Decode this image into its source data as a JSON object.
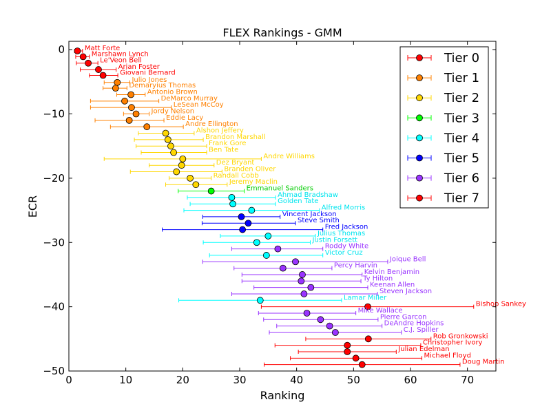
{
  "chart_data": {
    "type": "scatter",
    "title": "FLEX Rankings - GMM",
    "xlabel": "Ranking",
    "ylabel": "ECR",
    "xlim": [
      0,
      75
    ],
    "ylim": [
      -50,
      1.3
    ],
    "x_ticks": [
      0,
      10,
      20,
      30,
      40,
      50,
      60,
      70
    ],
    "y_ticks": [
      0,
      -10,
      -20,
      -30,
      -40,
      -50
    ],
    "x_tick_labels": [
      "0",
      "10",
      "20",
      "30",
      "40",
      "50",
      "60",
      "70"
    ],
    "y_tick_labels": [
      "0",
      "−10",
      "−20",
      "−30",
      "−40",
      "−50"
    ],
    "grid": false,
    "legend_position": "top-right",
    "legend": [
      {
        "label": "Tier 0",
        "color": "#ff0000"
      },
      {
        "label": "Tier 1",
        "color": "#ff8000"
      },
      {
        "label": "Tier 2",
        "color": "#ffd700"
      },
      {
        "label": "Tier 3",
        "color": "#00ff00"
      },
      {
        "label": "Tier 4",
        "color": "#00ffff"
      },
      {
        "label": "Tier 5",
        "color": "#0000ff"
      },
      {
        "label": "Tier 6",
        "color": "#9933ff"
      },
      {
        "label": "Tier 7",
        "color": "#ff0000"
      }
    ],
    "players": [
      {
        "name": "Matt Forte",
        "x": 1.5,
        "y": -0.2,
        "xmin": 1.0,
        "xmax": 2.4,
        "tier": 0
      },
      {
        "name": "Marshawn Lynch",
        "x": 2.5,
        "y": -1.1,
        "xmin": 1.2,
        "xmax": 3.6,
        "tier": 0
      },
      {
        "name": "Le'Veon Bell",
        "x": 3.4,
        "y": -2.1,
        "xmin": 1.3,
        "xmax": 5.1,
        "tier": 0
      },
      {
        "name": "Arian Foster",
        "x": 5.2,
        "y": -3.1,
        "xmin": 2.0,
        "xmax": 8.3,
        "tier": 0
      },
      {
        "name": "Giovani Bernard",
        "x": 6.0,
        "y": -4.0,
        "xmin": 3.6,
        "xmax": 8.6,
        "tier": 0
      },
      {
        "name": "Julio Jones",
        "x": 8.5,
        "y": -5.1,
        "xmin": 6.2,
        "xmax": 10.7,
        "tier": 1
      },
      {
        "name": "Demaryius Thomas",
        "x": 8.2,
        "y": -6.0,
        "xmin": 6.0,
        "xmax": 10.2,
        "tier": 1
      },
      {
        "name": "Antonio Brown",
        "x": 10.9,
        "y": -7.0,
        "xmin": 8.4,
        "xmax": 13.4,
        "tier": 1
      },
      {
        "name": "DeMarco Murray",
        "x": 9.8,
        "y": -8.0,
        "xmin": 3.8,
        "xmax": 15.8,
        "tier": 1
      },
      {
        "name": "LeSean McCoy",
        "x": 11.0,
        "y": -9.0,
        "xmin": 3.8,
        "xmax": 18.0,
        "tier": 1
      },
      {
        "name": "Jordy Nelson",
        "x": 11.8,
        "y": -10.0,
        "xmin": 9.6,
        "xmax": 14.1,
        "tier": 1
      },
      {
        "name": "Eddie Lacy",
        "x": 10.6,
        "y": -11.0,
        "xmin": 4.6,
        "xmax": 16.7,
        "tier": 1
      },
      {
        "name": "Andre Ellington",
        "x": 13.7,
        "y": -12.0,
        "xmin": 7.3,
        "xmax": 20.1,
        "tier": 1
      },
      {
        "name": "Alshon Jeffery",
        "x": 17.0,
        "y": -13.0,
        "xmin": 12.2,
        "xmax": 22.0,
        "tier": 2
      },
      {
        "name": "Brandon Marshall",
        "x": 17.4,
        "y": -14.0,
        "xmin": 11.5,
        "xmax": 23.6,
        "tier": 2
      },
      {
        "name": "Frank Gore",
        "x": 17.9,
        "y": -15.0,
        "xmin": 11.8,
        "xmax": 24.2,
        "tier": 2
      },
      {
        "name": "Ben Tate",
        "x": 18.4,
        "y": -16.0,
        "xmin": 12.7,
        "xmax": 24.2,
        "tier": 2
      },
      {
        "name": "Andre Williams",
        "x": 20.0,
        "y": -17.0,
        "xmin": 6.2,
        "xmax": 33.8,
        "tier": 2
      },
      {
        "name": "Dez Bryant",
        "x": 19.8,
        "y": -18.0,
        "xmin": 14.1,
        "xmax": 25.5,
        "tier": 2
      },
      {
        "name": "Branden Oliver",
        "x": 18.9,
        "y": -19.0,
        "xmin": 10.8,
        "xmax": 26.9,
        "tier": 2
      },
      {
        "name": "Randall Cobb",
        "x": 21.3,
        "y": -20.0,
        "xmin": 17.6,
        "xmax": 25.0,
        "tier": 2
      },
      {
        "name": "Jeremy Maclin",
        "x": 22.3,
        "y": -21.0,
        "xmin": 17.0,
        "xmax": 27.8,
        "tier": 2
      },
      {
        "name": "Emmanuel Sanders",
        "x": 25.0,
        "y": -22.0,
        "xmin": 19.2,
        "xmax": 30.8,
        "tier": 3
      },
      {
        "name": "Ahmad Bradshaw",
        "x": 28.6,
        "y": -23.0,
        "xmin": 20.8,
        "xmax": 36.3,
        "tier": 4
      },
      {
        "name": "Golden Tate",
        "x": 28.8,
        "y": -24.0,
        "xmin": 21.3,
        "xmax": 36.3,
        "tier": 4
      },
      {
        "name": "Alfred Morris",
        "x": 32.1,
        "y": -25.0,
        "xmin": 20.2,
        "xmax": 44.0,
        "tier": 4
      },
      {
        "name": "Vincent Jackson",
        "x": 30.3,
        "y": -26.0,
        "xmin": 23.5,
        "xmax": 37.1,
        "tier": 5
      },
      {
        "name": "Steve Smith",
        "x": 31.5,
        "y": -27.0,
        "xmin": 23.4,
        "xmax": 39.8,
        "tier": 5
      },
      {
        "name": "Fred Jackson",
        "x": 30.5,
        "y": -28.0,
        "xmin": 16.4,
        "xmax": 44.6,
        "tier": 5
      },
      {
        "name": "Julius Thomas",
        "x": 35.0,
        "y": -29.0,
        "xmin": 26.6,
        "xmax": 43.3,
        "tier": 4
      },
      {
        "name": "Justin Forsett",
        "x": 33.0,
        "y": -30.0,
        "xmin": 23.6,
        "xmax": 42.4,
        "tier": 4
      },
      {
        "name": "Roddy White",
        "x": 36.7,
        "y": -31.0,
        "xmin": 28.6,
        "xmax": 44.6,
        "tier": 6
      },
      {
        "name": "Victor Cruz",
        "x": 34.7,
        "y": -32.0,
        "xmin": 24.7,
        "xmax": 44.6,
        "tier": 4
      },
      {
        "name": "Joique Bell",
        "x": 39.8,
        "y": -33.0,
        "xmin": 23.5,
        "xmax": 56.0,
        "tier": 6
      },
      {
        "name": "Percy Harvin",
        "x": 37.6,
        "y": -34.0,
        "xmin": 29.0,
        "xmax": 46.2,
        "tier": 6
      },
      {
        "name": "Kelvin Benjamin",
        "x": 41.0,
        "y": -35.0,
        "xmin": 30.4,
        "xmax": 51.5,
        "tier": 6
      },
      {
        "name": "Ty Hilton",
        "x": 40.8,
        "y": -36.0,
        "xmin": 30.4,
        "xmax": 51.3,
        "tier": 6
      },
      {
        "name": "Keenan Allen",
        "x": 42.5,
        "y": -37.0,
        "xmin": 32.5,
        "xmax": 52.5,
        "tier": 6
      },
      {
        "name": "Steven Jackson",
        "x": 41.3,
        "y": -38.0,
        "xmin": 28.6,
        "xmax": 54.2,
        "tier": 6
      },
      {
        "name": "Lamar Miller",
        "x": 33.6,
        "y": -39.0,
        "xmin": 19.3,
        "xmax": 47.9,
        "tier": 4
      },
      {
        "name": "Bishop Sankey",
        "x": 52.5,
        "y": -40.0,
        "xmin": 33.8,
        "xmax": 71.1,
        "tier": 7
      },
      {
        "name": "Mike Wallace",
        "x": 41.8,
        "y": -41.0,
        "xmin": 33.3,
        "xmax": 50.4,
        "tier": 6
      },
      {
        "name": "Pierre Garcon",
        "x": 44.2,
        "y": -42.0,
        "xmin": 34.2,
        "xmax": 54.3,
        "tier": 6
      },
      {
        "name": "DeAndre Hopkins",
        "x": 45.8,
        "y": -43.0,
        "xmin": 36.5,
        "xmax": 55.0,
        "tier": 6
      },
      {
        "name": "C.J. Spiller",
        "x": 46.8,
        "y": -44.0,
        "xmin": 35.2,
        "xmax": 58.4,
        "tier": 6
      },
      {
        "name": "Rob Gronkowski",
        "x": 52.6,
        "y": -45.0,
        "xmin": 41.6,
        "xmax": 63.6,
        "tier": 7
      },
      {
        "name": "Christopher Ivory",
        "x": 48.9,
        "y": -46.0,
        "xmin": 36.2,
        "xmax": 61.8,
        "tier": 7
      },
      {
        "name": "Julian Edelman",
        "x": 48.9,
        "y": -47.0,
        "xmin": 40.3,
        "xmax": 57.5,
        "tier": 7
      },
      {
        "name": "Michael Floyd",
        "x": 50.4,
        "y": -48.0,
        "xmin": 38.9,
        "xmax": 62.0,
        "tier": 7
      },
      {
        "name": "Doug Martin",
        "x": 51.5,
        "y": -49.0,
        "xmin": 34.3,
        "xmax": 68.7,
        "tier": 7
      }
    ]
  },
  "tier_colors": [
    "#ff0000",
    "#ff8000",
    "#ffd700",
    "#00ff00",
    "#00ffff",
    "#0000ff",
    "#9933ff",
    "#ff0000"
  ],
  "label_colors": [
    "#ff0000",
    "#ff8000",
    "#ffd700",
    "#00cc00",
    "#00e5ee",
    "#0000ff",
    "#9933ff",
    "#ff0000"
  ]
}
